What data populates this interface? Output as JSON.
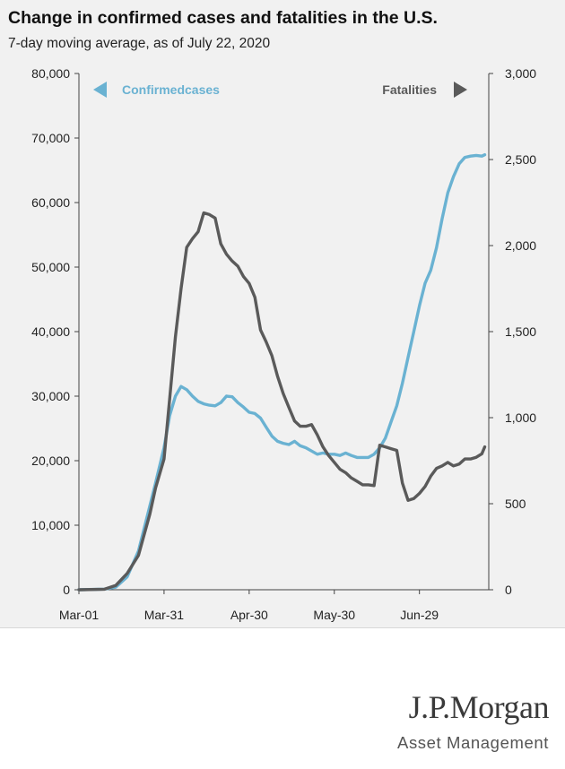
{
  "chart_data": {
    "type": "line",
    "title": "Change in confirmed cases and fatalities in the U.S.",
    "subtitle": "7-day moving average, as of July 22, 2020",
    "x_dates": [
      "2020-03-01",
      "2020-03-10",
      "2020-03-14",
      "2020-03-18",
      "2020-03-22",
      "2020-03-26",
      "2020-03-28",
      "2020-03-31",
      "2020-04-02",
      "2020-04-04",
      "2020-04-06",
      "2020-04-08",
      "2020-04-10",
      "2020-04-12",
      "2020-04-14",
      "2020-04-16",
      "2020-04-18",
      "2020-04-20",
      "2020-04-22",
      "2020-04-24",
      "2020-04-26",
      "2020-04-28",
      "2020-04-30",
      "2020-05-02",
      "2020-05-04",
      "2020-05-06",
      "2020-05-08",
      "2020-05-10",
      "2020-05-12",
      "2020-05-14",
      "2020-05-16",
      "2020-05-18",
      "2020-05-20",
      "2020-05-22",
      "2020-05-24",
      "2020-05-26",
      "2020-05-28",
      "2020-05-30",
      "2020-06-01",
      "2020-06-03",
      "2020-06-05",
      "2020-06-07",
      "2020-06-09",
      "2020-06-11",
      "2020-06-13",
      "2020-06-15",
      "2020-06-17",
      "2020-06-19",
      "2020-06-21",
      "2020-06-23",
      "2020-06-25",
      "2020-06-27",
      "2020-06-29",
      "2020-07-01",
      "2020-07-03",
      "2020-07-05",
      "2020-07-07",
      "2020-07-09",
      "2020-07-11",
      "2020-07-13",
      "2020-07-15",
      "2020-07-17",
      "2020-07-19",
      "2020-07-21",
      "2020-07-22"
    ],
    "series": [
      {
        "name": "Confirmed cases",
        "axis": "left",
        "color": "#6ab2d2",
        "values": [
          0,
          100,
          400,
          2000,
          6000,
          13000,
          16500,
          22000,
          27000,
          30000,
          31500,
          31000,
          30000,
          29200,
          28800,
          28600,
          28500,
          29000,
          30000,
          29900,
          29000,
          28300,
          27500,
          27300,
          26600,
          25200,
          23800,
          23000,
          22700,
          22500,
          23000,
          22300,
          22000,
          21500,
          21000,
          21200,
          21000,
          21000,
          20800,
          21200,
          20800,
          20500,
          20500,
          20500,
          21000,
          22000,
          23500,
          26000,
          28500,
          32000,
          36000,
          40000,
          44000,
          47500,
          49500,
          53000,
          57500,
          61500,
          64000,
          66000,
          67000,
          67200,
          67300,
          67200,
          67400
        ]
      },
      {
        "name": "Fatalities",
        "axis": "right",
        "color": "#5a5a5a",
        "values": [
          0,
          3,
          25,
          95,
          200,
          440,
          590,
          760,
          1110,
          1470,
          1750,
          1990,
          2040,
          2080,
          2190,
          2180,
          2160,
          2010,
          1950,
          1910,
          1880,
          1820,
          1780,
          1700,
          1510,
          1440,
          1360,
          1240,
          1140,
          1060,
          980,
          950,
          950,
          960,
          900,
          830,
          780,
          740,
          700,
          680,
          650,
          630,
          610,
          610,
          605,
          840,
          830,
          820,
          810,
          620,
          520,
          530,
          560,
          600,
          660,
          705,
          720,
          740,
          720,
          730,
          760,
          760,
          770,
          790,
          830
        ]
      }
    ],
    "xlabel": "",
    "ylabel_left": "",
    "ylabel_right": "",
    "ylim_left": [
      0,
      80000
    ],
    "ylim_right": [
      0,
      3000
    ],
    "x_ticks": [
      "Mar-01",
      "Mar-31",
      "Apr-30",
      "May-30",
      "Jun-29"
    ],
    "y_ticks_left": [
      "80,000",
      "70,000",
      "60,000",
      "50,000",
      "40,000",
      "30,000",
      "20,000",
      "10,000",
      "0"
    ],
    "y_ticks_right": [
      "3,000",
      "2,500",
      "2,000",
      "1,500",
      "1,000",
      "500",
      "0"
    ],
    "legend": [
      {
        "label": "Confirmedcases",
        "color": "#6ab2d2",
        "arrow": "left",
        "position": "top-left"
      },
      {
        "label": "Fatalities",
        "color": "#5a5a5a",
        "arrow": "right",
        "position": "top-right"
      }
    ],
    "grid": false
  },
  "branding": {
    "logo_main": "J.P.Morgan",
    "logo_sub": "Asset Management"
  }
}
